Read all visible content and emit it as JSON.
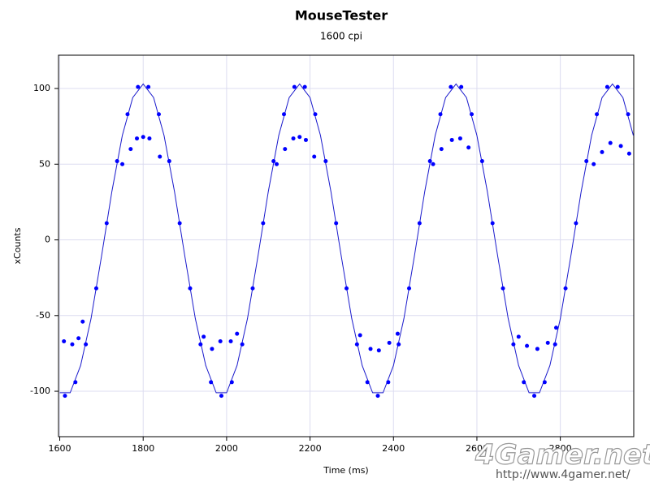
{
  "chart_data": {
    "type": "scatter",
    "title": "MouseTester",
    "subtitle": "1600 cpi",
    "x_label": "Time (ms)",
    "y_label": "xCounts",
    "xlim": [
      1597,
      2976
    ],
    "ylim": [
      -130,
      122
    ],
    "xticks": [
      1600,
      1800,
      2000,
      2200,
      2400,
      2600,
      2800
    ],
    "yticks": [
      -100,
      -50,
      0,
      50,
      100
    ],
    "grid": true,
    "watermark": "4Gamer.net",
    "watermark_url": "http://www.4gamer.net/",
    "series": [
      {
        "style": "line",
        "color": "#1a1acc",
        "x": [
          1600,
          1625,
          1650,
          1675,
          1700,
          1725,
          1750,
          1775,
          1800,
          1825,
          1850,
          1875,
          1900,
          1925,
          1950,
          1975,
          2000,
          2025,
          2050,
          2075,
          2100,
          2125,
          2150,
          2175,
          2200,
          2225,
          2250,
          2275,
          2300,
          2325,
          2350,
          2375,
          2400,
          2425,
          2450,
          2475,
          2500,
          2525,
          2550,
          2575,
          2600,
          2625,
          2650,
          2675,
          2700,
          2725,
          2750,
          2775,
          2800,
          2825,
          2850,
          2875,
          2900,
          2925,
          2950,
          2975
        ],
        "values": [
          -101,
          -101,
          -83,
          -52,
          -11,
          32,
          69,
          94,
          103,
          94,
          69,
          32,
          -11,
          -52,
          -83,
          -101,
          -101,
          -83,
          -52,
          -11,
          32,
          69,
          94,
          103,
          94,
          69,
          32,
          -11,
          -52,
          -83,
          -101,
          -101,
          -83,
          -52,
          -11,
          32,
          69,
          94,
          103,
          94,
          69,
          32,
          -11,
          -52,
          -83,
          -101,
          -101,
          -83,
          -52,
          -11,
          32,
          69,
          94,
          103,
          94,
          69
        ]
      },
      {
        "style": "markers",
        "color": "#0000ff",
        "x": [
          1612.5,
          1637.5,
          1662.5,
          1687.5,
          1712.5,
          1737.5,
          1762.5,
          1787.5,
          1812.5,
          1837.5,
          1862.5,
          1887.5,
          1912.5,
          1937.5,
          1962.5,
          1987.5,
          2012.5,
          2037.5,
          2062.5,
          2087.5,
          2112.5,
          2137.5,
          2162.5,
          2187.5,
          2212.5,
          2237.5,
          2262.5,
          2287.5,
          2312.5,
          2337.5,
          2362.5,
          2387.5,
          2412.5,
          2437.5,
          2462.5,
          2487.5,
          2512.5,
          2537.5,
          2562.5,
          2587.5,
          2612.5,
          2637.5,
          2662.5,
          2687.5,
          2712.5,
          2737.5,
          2762.5,
          2787.5,
          2812.5,
          2837.5,
          2862.5,
          2887.5,
          2912.5,
          2937.5,
          2962.5
        ],
        "values": [
          -103,
          -94,
          -69,
          -32,
          11,
          52,
          83,
          101,
          101,
          83,
          52,
          11,
          -32,
          -69,
          -94,
          -103,
          -94,
          -69,
          -32,
          11,
          52,
          83,
          101,
          101,
          83,
          52,
          11,
          -32,
          -69,
          -94,
          -103,
          -94,
          -69,
          -32,
          11,
          52,
          83,
          101,
          101,
          83,
          52,
          11,
          -32,
          -69,
          -94,
          -103,
          -94,
          -69,
          -32,
          11,
          52,
          83,
          101,
          101,
          83
        ]
      },
      {
        "style": "markers",
        "color": "#0000ff",
        "x": [
          1610,
          1630,
          1645,
          1655,
          1750,
          1770,
          1785,
          1800,
          1815,
          1840,
          1945,
          1965,
          1985,
          2010,
          2025,
          2120,
          2140,
          2160,
          2175,
          2190,
          2210,
          2320,
          2345,
          2365,
          2390,
          2410,
          2495,
          2515,
          2540,
          2560,
          2580,
          2700,
          2720,
          2745,
          2770,
          2790,
          2880,
          2900,
          2920,
          2945,
          2965
        ],
        "values": [
          -67,
          -69,
          -65,
          -54,
          50,
          60,
          67,
          68,
          67,
          55,
          -64,
          -72,
          -67,
          -67,
          -62,
          50,
          60,
          67,
          68,
          66,
          55,
          -63,
          -72,
          -73,
          -68,
          -62,
          50,
          60,
          66,
          67,
          61,
          -64,
          -70,
          -72,
          -68,
          -58,
          50,
          58,
          64,
          62,
          57
        ]
      }
    ]
  }
}
